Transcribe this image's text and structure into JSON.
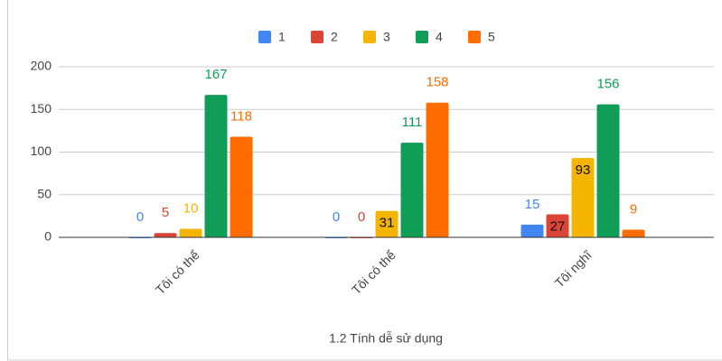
{
  "chart_data": {
    "type": "bar",
    "x_label": "1.2 Tính dễ sử dụng",
    "categories": [
      "Tôi có thể",
      "Tôi có thể",
      "Tôi nghĩ"
    ],
    "series": [
      {
        "name": "1",
        "color": "#4285f4",
        "values": [
          0,
          0,
          15
        ]
      },
      {
        "name": "2",
        "color": "#db4437",
        "values": [
          5,
          0,
          27
        ]
      },
      {
        "name": "3",
        "color": "#f4b400",
        "values": [
          10,
          31,
          93
        ]
      },
      {
        "name": "4",
        "color": "#0f9d58",
        "values": [
          167,
          111,
          156
        ]
      },
      {
        "name": "5",
        "color": "#ff6d00",
        "values": [
          118,
          158,
          9
        ]
      }
    ],
    "ylim": [
      0,
      200
    ],
    "yticks": [
      0,
      50,
      100,
      150,
      200
    ],
    "grid": true,
    "legend": "top"
  }
}
